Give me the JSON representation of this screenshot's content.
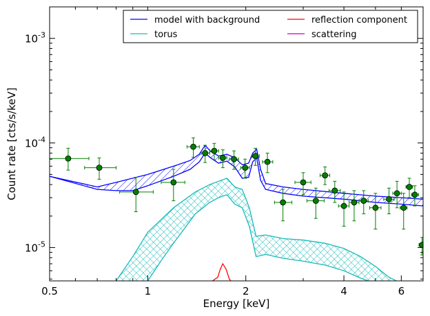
{
  "chart_data": {
    "type": "scatter",
    "xlabel": "Energy [keV]",
    "ylabel": "Count rate [cts/s/keV]",
    "x_scale": "log",
    "y_scale": "log",
    "xlim": [
      0.5,
      7.0
    ],
    "ylim": [
      4.8e-06,
      0.002
    ],
    "x_ticks": [
      {
        "value": 0.5,
        "label": "0.5"
      },
      {
        "value": 1,
        "label": "1"
      },
      {
        "value": 2,
        "label": "2"
      },
      {
        "value": 4,
        "label": "4"
      },
      {
        "value": 6,
        "label": "6"
      }
    ],
    "y_ticks": [
      {
        "value": 1e-05,
        "mant": "10",
        "exp": "-5"
      },
      {
        "value": 0.0001,
        "mant": "10",
        "exp": "-4"
      },
      {
        "value": 0.001,
        "mant": "10",
        "exp": "-3"
      }
    ],
    "grid": false,
    "legend": {
      "position": "top-right",
      "entries": [
        {
          "label": "model with background",
          "color": "#0000ff"
        },
        {
          "label": "reflection component",
          "color": "#ff0000"
        },
        {
          "label": "torus",
          "color": "#00bfbf"
        },
        {
          "label": "scattering",
          "color": "#bf00bf"
        }
      ]
    },
    "colors": {
      "data": "#007f00",
      "model": "#0000ff",
      "torus": "#19b9b9",
      "reflection": "#ff0000"
    },
    "data_points": [
      {
        "x": 0.57,
        "y": 7.1e-05,
        "xlo": 0.5,
        "xhi": 0.66,
        "ylo": 5.5e-05,
        "yhi": 8.9e-05
      },
      {
        "x": 0.71,
        "y": 5.8e-05,
        "xlo": 0.64,
        "xhi": 0.8,
        "ylo": 4.5e-05,
        "yhi": 7.2e-05
      },
      {
        "x": 0.92,
        "y": 3.4e-05,
        "xlo": 0.82,
        "xhi": 1.04,
        "ylo": 2.2e-05,
        "yhi": 4.7e-05
      },
      {
        "x": 1.2,
        "y": 4.2e-05,
        "xlo": 1.1,
        "xhi": 1.3,
        "ylo": 2.8e-05,
        "yhi": 5.6e-05
      },
      {
        "x": 1.38,
        "y": 9.2e-05,
        "xlo": 1.32,
        "xhi": 1.44,
        "ylo": 7.3e-05,
        "yhi": 0.000112
      },
      {
        "x": 1.5,
        "y": 8e-05,
        "xlo": 1.46,
        "xhi": 1.55,
        "ylo": 6.5e-05,
        "yhi": 9.5e-05
      },
      {
        "x": 1.6,
        "y": 8.4e-05,
        "xlo": 1.55,
        "xhi": 1.65,
        "ylo": 6.9e-05,
        "yhi": 9.9e-05
      },
      {
        "x": 1.7,
        "y": 7.2e-05,
        "xlo": 1.65,
        "xhi": 1.75,
        "ylo": 5.8e-05,
        "yhi": 8.6e-05
      },
      {
        "x": 1.84,
        "y": 7e-05,
        "xlo": 1.78,
        "xhi": 1.9,
        "ylo": 5.6e-05,
        "yhi": 8.4e-05
      },
      {
        "x": 1.99,
        "y": 5.8e-05,
        "xlo": 1.93,
        "xhi": 2.05,
        "ylo": 4.6e-05,
        "yhi": 7e-05
      },
      {
        "x": 2.14,
        "y": 7.5e-05,
        "xlo": 2.09,
        "xhi": 2.2,
        "ylo": 6.1e-05,
        "yhi": 8.9e-05
      },
      {
        "x": 2.33,
        "y": 6.6e-05,
        "xlo": 2.25,
        "xhi": 2.42,
        "ylo": 5.2e-05,
        "yhi": 8e-05
      },
      {
        "x": 2.6,
        "y": 2.7e-05,
        "xlo": 2.45,
        "xhi": 2.77,
        "ylo": 1.8e-05,
        "yhi": 3.6e-05
      },
      {
        "x": 3.0,
        "y": 4.2e-05,
        "xlo": 2.83,
        "xhi": 3.17,
        "ylo": 3.2e-05,
        "yhi": 5.2e-05
      },
      {
        "x": 3.28,
        "y": 2.8e-05,
        "xlo": 3.08,
        "xhi": 3.48,
        "ylo": 1.9e-05,
        "yhi": 3.7e-05
      },
      {
        "x": 3.5,
        "y": 4.9e-05,
        "xlo": 3.38,
        "xhi": 3.62,
        "ylo": 4e-05,
        "yhi": 5.9e-05
      },
      {
        "x": 3.75,
        "y": 3.5e-05,
        "xlo": 3.6,
        "xhi": 3.9,
        "ylo": 2.7e-05,
        "yhi": 4.3e-05
      },
      {
        "x": 4.0,
        "y": 2.5e-05,
        "xlo": 3.85,
        "xhi": 4.15,
        "ylo": 1.6e-05,
        "yhi": 3.4e-05
      },
      {
        "x": 4.3,
        "y": 2.7e-05,
        "xlo": 4.15,
        "xhi": 4.45,
        "ylo": 1.8e-05,
        "yhi": 3.5e-05
      },
      {
        "x": 4.6,
        "y": 2.8e-05,
        "xlo": 4.45,
        "xhi": 4.75,
        "ylo": 2.1e-05,
        "yhi": 3.5e-05
      },
      {
        "x": 5.0,
        "y": 2.4e-05,
        "xlo": 4.8,
        "xhi": 5.2,
        "ylo": 1.5e-05,
        "yhi": 3.3e-05
      },
      {
        "x": 5.5,
        "y": 2.9e-05,
        "xlo": 5.3,
        "xhi": 5.7,
        "ylo": 2.1e-05,
        "yhi": 3.7e-05
      },
      {
        "x": 5.82,
        "y": 3.3e-05,
        "xlo": 5.65,
        "xhi": 6.0,
        "ylo": 2.4e-05,
        "yhi": 4.3e-05
      },
      {
        "x": 6.1,
        "y": 2.4e-05,
        "xlo": 5.95,
        "xhi": 6.25,
        "ylo": 1.5e-05,
        "yhi": 3.3e-05
      },
      {
        "x": 6.35,
        "y": 3.8e-05,
        "xlo": 6.2,
        "xhi": 6.5,
        "ylo": 3e-05,
        "yhi": 4.6e-05
      },
      {
        "x": 6.6,
        "y": 3.2e-05,
        "xlo": 6.45,
        "xhi": 6.78,
        "ylo": 2.5e-05,
        "yhi": 3.9e-05
      },
      {
        "x": 6.95,
        "y": 1.06e-05,
        "xlo": 6.8,
        "xhi": 7.0,
        "ylo": 8.5e-06,
        "yhi": 1.25e-05
      }
    ],
    "model_upper": [
      [
        0.5,
        4.8e-05
      ],
      [
        0.7,
        3.8e-05
      ],
      [
        0.8,
        4.2e-05
      ],
      [
        1.0,
        5e-05
      ],
      [
        1.2,
        6e-05
      ],
      [
        1.35,
        6.8e-05
      ],
      [
        1.44,
        7.8e-05
      ],
      [
        1.5,
        9.5e-05
      ],
      [
        1.56,
        8.3e-05
      ],
      [
        1.65,
        7.5e-05
      ],
      [
        1.75,
        7.8e-05
      ],
      [
        1.85,
        7.2e-05
      ],
      [
        1.95,
        6.2e-05
      ],
      [
        2.04,
        6.4e-05
      ],
      [
        2.1,
        8e-05
      ],
      [
        2.16,
        8.7e-05
      ],
      [
        2.22,
        5.6e-05
      ],
      [
        2.3,
        4.1e-05
      ],
      [
        2.6,
        3.8e-05
      ],
      [
        3.0,
        3.6e-05
      ],
      [
        4.0,
        3.3e-05
      ],
      [
        5.0,
        3.1e-05
      ],
      [
        6.0,
        3e-05
      ],
      [
        7.0,
        2.9e-05
      ]
    ],
    "model_lower": [
      [
        0.5,
        4.8e-05
      ],
      [
        0.7,
        3.6e-05
      ],
      [
        0.8,
        3.5e-05
      ],
      [
        0.9,
        3.5e-05
      ],
      [
        1.0,
        3.9e-05
      ],
      [
        1.2,
        4.8e-05
      ],
      [
        1.35,
        5.6e-05
      ],
      [
        1.44,
        6.6e-05
      ],
      [
        1.5,
        8e-05
      ],
      [
        1.56,
        7.2e-05
      ],
      [
        1.65,
        6.4e-05
      ],
      [
        1.75,
        6.7e-05
      ],
      [
        1.85,
        5.9e-05
      ],
      [
        1.95,
        4.6e-05
      ],
      [
        2.04,
        4.7e-05
      ],
      [
        2.1,
        6.6e-05
      ],
      [
        2.16,
        7.2e-05
      ],
      [
        2.22,
        4.4e-05
      ],
      [
        2.3,
        3.6e-05
      ],
      [
        2.6,
        3.3e-05
      ],
      [
        3.0,
        3.1e-05
      ],
      [
        4.0,
        2.9e-05
      ],
      [
        5.0,
        2.7e-05
      ],
      [
        6.0,
        2.6e-05
      ],
      [
        7.0,
        2.5e-05
      ]
    ],
    "torus_upper": [
      [
        0.8,
        4.8e-06
      ],
      [
        0.9,
        8.2e-06
      ],
      [
        1.0,
        1.4e-05
      ],
      [
        1.2,
        2.4e-05
      ],
      [
        1.4,
        3.4e-05
      ],
      [
        1.55,
        4e-05
      ],
      [
        1.65,
        4.3e-05
      ],
      [
        1.75,
        4.6e-05
      ],
      [
        1.85,
        3.8e-05
      ],
      [
        1.95,
        3.6e-05
      ],
      [
        2.05,
        2.4e-05
      ],
      [
        2.15,
        1.28e-05
      ],
      [
        2.3,
        1.32e-05
      ],
      [
        2.6,
        1.22e-05
      ],
      [
        3.0,
        1.18e-05
      ],
      [
        3.5,
        1.1e-05
      ],
      [
        4.0,
        9.8e-06
      ],
      [
        4.5,
        8.2e-06
      ],
      [
        5.0,
        6.6e-06
      ],
      [
        5.5,
        5.2e-06
      ],
      [
        5.8,
        4.8e-06
      ]
    ],
    "torus_lower": [
      [
        1.0,
        4.8e-06
      ],
      [
        1.1,
        7.5e-06
      ],
      [
        1.2,
        1.1e-05
      ],
      [
        1.4,
        2.1e-05
      ],
      [
        1.55,
        2.7e-05
      ],
      [
        1.65,
        3e-05
      ],
      [
        1.75,
        3.2e-05
      ],
      [
        1.85,
        2.6e-05
      ],
      [
        1.95,
        2.4e-05
      ],
      [
        2.05,
        1.6e-05
      ],
      [
        2.15,
        8.2e-06
      ],
      [
        2.3,
        8.6e-06
      ],
      [
        2.6,
        7.9e-06
      ],
      [
        3.0,
        7.4e-06
      ],
      [
        3.5,
        6.8e-06
      ],
      [
        4.0,
        6e-06
      ],
      [
        4.5,
        5.1e-06
      ],
      [
        4.75,
        4.8e-06
      ]
    ],
    "reflection_curve": [
      [
        1.58,
        4.8e-06
      ],
      [
        1.64,
        5.2e-06
      ],
      [
        1.67,
        6.2e-06
      ],
      [
        1.7,
        7e-06
      ],
      [
        1.74,
        6.2e-06
      ],
      [
        1.78,
        5e-06
      ],
      [
        1.8,
        4.8e-06
      ]
    ]
  }
}
